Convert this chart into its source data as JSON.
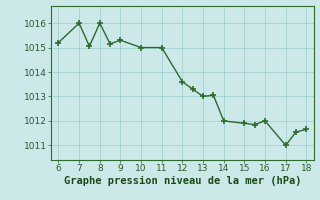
{
  "x": [
    6,
    7,
    7.5,
    8,
    8.5,
    9,
    10,
    11,
    12,
    12.5,
    13,
    13.5,
    14,
    15,
    15.5,
    16,
    17,
    17.5,
    18
  ],
  "y": [
    1015.2,
    1016.0,
    1015.05,
    1016.0,
    1015.15,
    1015.3,
    1015.0,
    1015.0,
    1013.6,
    1013.3,
    1013.0,
    1013.05,
    1012.0,
    1011.9,
    1011.85,
    1012.0,
    1011.0,
    1011.55,
    1011.65
  ],
  "line_color": "#2d6a2d",
  "marker_color": "#2d6a2d",
  "bg_color": "#cce8e8",
  "grid_color": "#99cccc",
  "border_color": "#2d6a2d",
  "xlabel": "Graphe pression niveau de la mer (hPa)",
  "xlabel_color": "#1a4a1a",
  "xlabel_fontsize": 7.5,
  "tick_label_color": "#2d5a2d",
  "xticks": [
    6,
    7,
    8,
    9,
    10,
    11,
    12,
    13,
    14,
    15,
    16,
    17,
    18
  ],
  "yticks": [
    1011,
    1012,
    1013,
    1014,
    1015,
    1016
  ],
  "xlim": [
    5.65,
    18.35
  ],
  "ylim": [
    1010.4,
    1016.7
  ],
  "tick_fontsize": 6.5,
  "line_width": 1.0,
  "marker_size": 4.0,
  "marker_ew": 1.2
}
